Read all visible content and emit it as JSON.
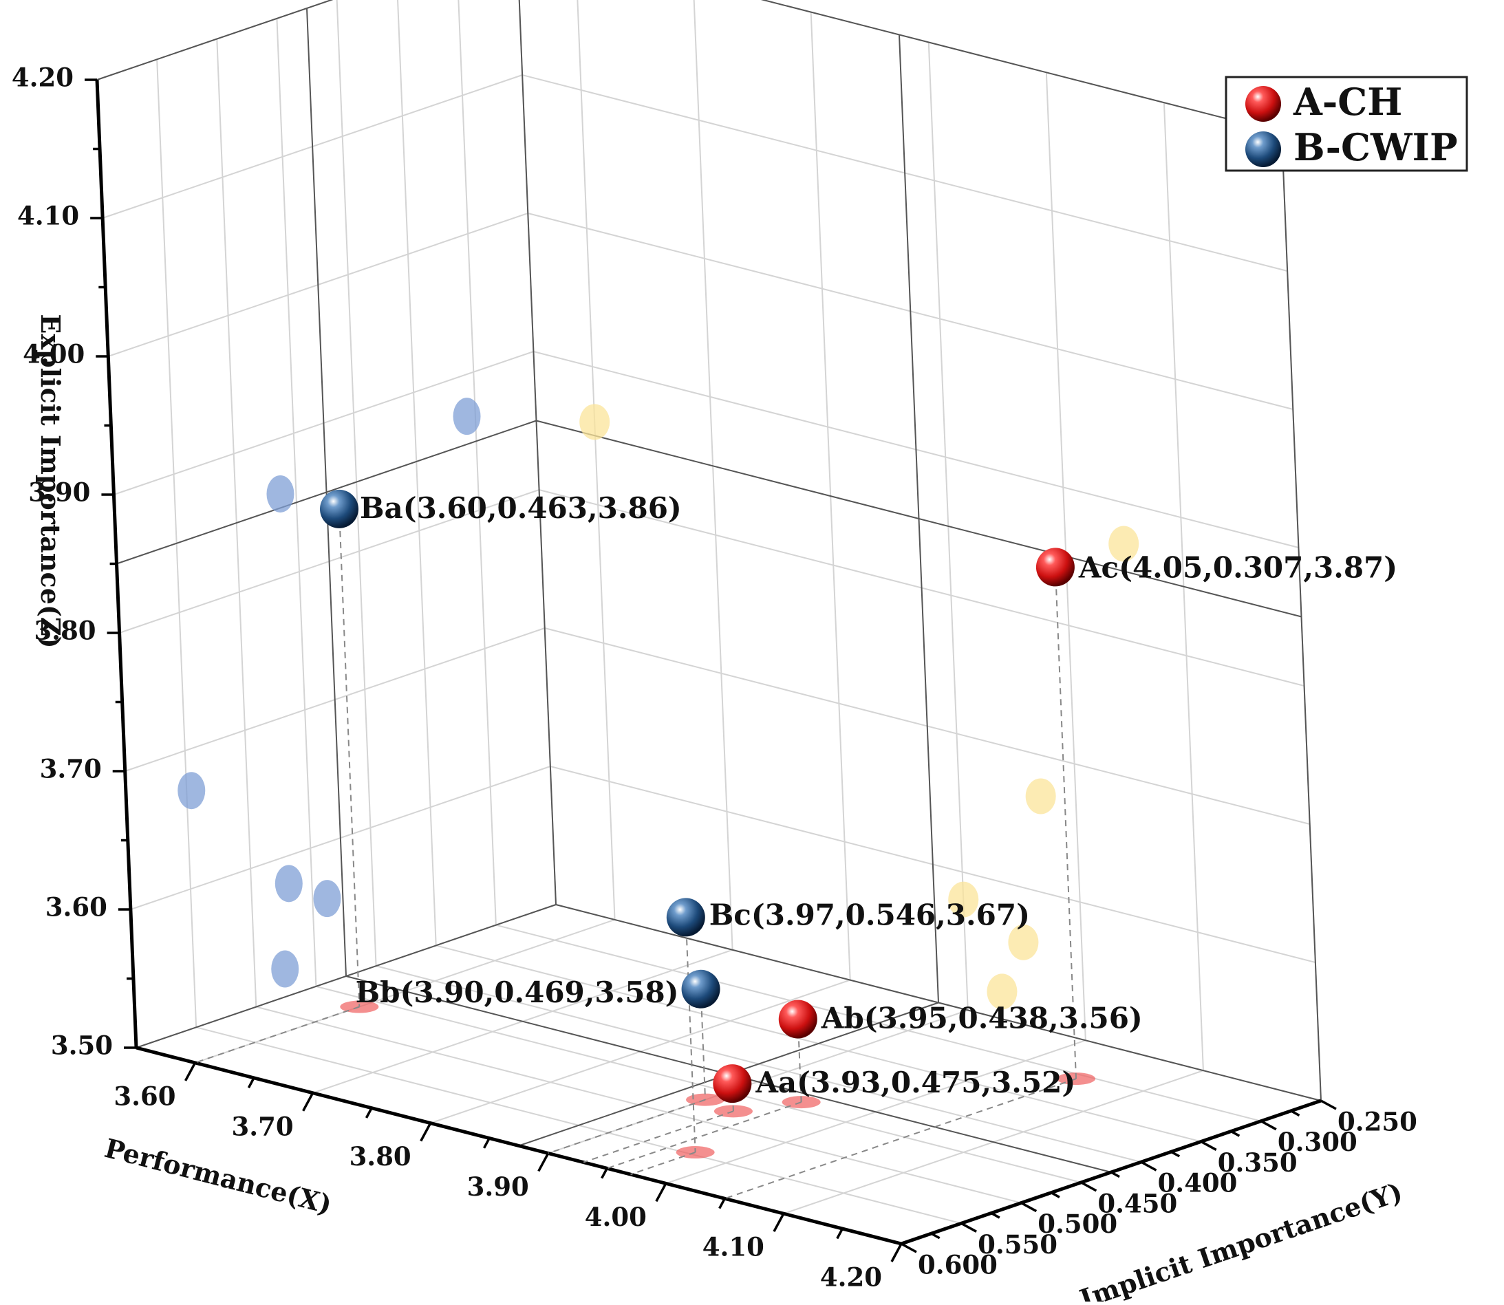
{
  "chart_data": {
    "type": "scatter3d",
    "axes": {
      "x": {
        "label": "Performance(X)",
        "range": [
          3.55,
          4.2
        ],
        "ticks": [
          "3.60",
          "3.70",
          "3.80",
          "3.90",
          "4.00",
          "4.10",
          "4.20"
        ]
      },
      "y": {
        "label": "Implicit Importance(Y)",
        "range": [
          0.25,
          0.6
        ],
        "ticks": [
          "0.250",
          "0.300",
          "0.350",
          "0.400",
          "0.450",
          "0.500",
          "0.550",
          "0.600"
        ]
      },
      "z": {
        "label": "Explicit Importance(Z)",
        "range": [
          3.5,
          4.2
        ],
        "ticks": [
          "3.50",
          "3.60",
          "3.70",
          "3.80",
          "3.90",
          "4.00",
          "4.10",
          "4.20"
        ]
      }
    },
    "grid": true,
    "legend_position": "top-right",
    "series": [
      {
        "name": "A-CH",
        "color": "#d01818",
        "points": [
          {
            "id": "Aa",
            "label": "Aa(3.93,0.475,3.52)",
            "x": 3.93,
            "y": 0.475,
            "z": 3.52
          },
          {
            "id": "Ab",
            "label": "Ab(3.95,0.438,3.56)",
            "x": 3.95,
            "y": 0.438,
            "z": 3.56
          },
          {
            "id": "Ac",
            "label": "Ac(4.05,0.307,3.87)",
            "x": 4.05,
            "y": 0.307,
            "z": 3.87
          }
        ]
      },
      {
        "name": "B-CWIP",
        "color": "#1d4a7a",
        "points": [
          {
            "id": "Ba",
            "label": "Ba(3.60,0.463,3.86)",
            "x": 3.6,
            "y": 0.463,
            "z": 3.86
          },
          {
            "id": "Bb",
            "label": "Bb(3.90,0.469,3.58)",
            "x": 3.9,
            "y": 0.469,
            "z": 3.58
          },
          {
            "id": "Bc",
            "label": "Bc(3.97,0.546,3.67)",
            "x": 3.97,
            "y": 0.546,
            "z": 3.67
          }
        ]
      }
    ],
    "projection_colors": {
      "floor": "#f06060",
      "left_wall": "#7f9fd6",
      "right_wall": "#fbe49a"
    }
  }
}
